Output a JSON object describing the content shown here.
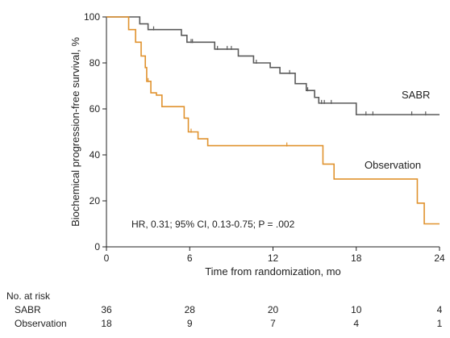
{
  "chart_data": {
    "type": "line",
    "subtype": "kaplan-meier",
    "xlabel": "Time from randomization, mo",
    "ylabel": "Biochemical progression-free survival, %",
    "xlim": [
      0,
      24
    ],
    "ylim": [
      0,
      100
    ],
    "xticks": [
      "0",
      "6",
      "12",
      "18",
      "24"
    ],
    "yticks": [
      "0",
      "20",
      "40",
      "60",
      "80",
      "100"
    ],
    "grid": false,
    "annotation": "HR, 0.31; 95% CI, 0.13-0.75; P = .002",
    "series": [
      {
        "name": "SABR",
        "color": "#5a5a5a",
        "step_points": [
          [
            0,
            100
          ],
          [
            1.5,
            100
          ],
          [
            2.4,
            97
          ],
          [
            3,
            94.5
          ],
          [
            5.4,
            92
          ],
          [
            5.8,
            89
          ],
          [
            7,
            89
          ],
          [
            7.8,
            86
          ],
          [
            9.5,
            83
          ],
          [
            10.6,
            80
          ],
          [
            11.8,
            78
          ],
          [
            12.5,
            75.5
          ],
          [
            13.6,
            71
          ],
          [
            14.4,
            68
          ],
          [
            15,
            65
          ],
          [
            15.3,
            62.5
          ],
          [
            18,
            57.5
          ],
          [
            24,
            57.5
          ]
        ],
        "censor_x": [
          3.4,
          6.1,
          6.2,
          8.0,
          8.7,
          9.0,
          10.8,
          13.2,
          14.5,
          15.5,
          15.7,
          16.2,
          18.7,
          19.2,
          22.0,
          23.0
        ]
      },
      {
        "name": "Observation",
        "color": "#e0922e",
        "step_points": [
          [
            0,
            100
          ],
          [
            1,
            100
          ],
          [
            1.6,
            94.5
          ],
          [
            2.1,
            89
          ],
          [
            2.5,
            83
          ],
          [
            2.8,
            78
          ],
          [
            2.9,
            72
          ],
          [
            3.2,
            67
          ],
          [
            3.6,
            66
          ],
          [
            4,
            61
          ],
          [
            5,
            61
          ],
          [
            5.6,
            56
          ],
          [
            5.9,
            50
          ],
          [
            6.6,
            47
          ],
          [
            7.3,
            44
          ],
          [
            15,
            44
          ],
          [
            15.6,
            36
          ],
          [
            16.4,
            29.5
          ],
          [
            22.1,
            29.5
          ],
          [
            22.4,
            19
          ],
          [
            22.9,
            10
          ],
          [
            24,
            10
          ]
        ],
        "censor_x": [
          2.8,
          3.0,
          6.1,
          13.0
        ]
      }
    ],
    "risk_table": {
      "header": "No. at risk",
      "times": [
        "0",
        "6",
        "12",
        "18",
        "24"
      ],
      "rows": [
        {
          "label": "SABR",
          "values": [
            "36",
            "28",
            "20",
            "10",
            "4"
          ]
        },
        {
          "label": "Observation",
          "values": [
            "18",
            "9",
            "7",
            "4",
            "1"
          ]
        }
      ]
    }
  }
}
